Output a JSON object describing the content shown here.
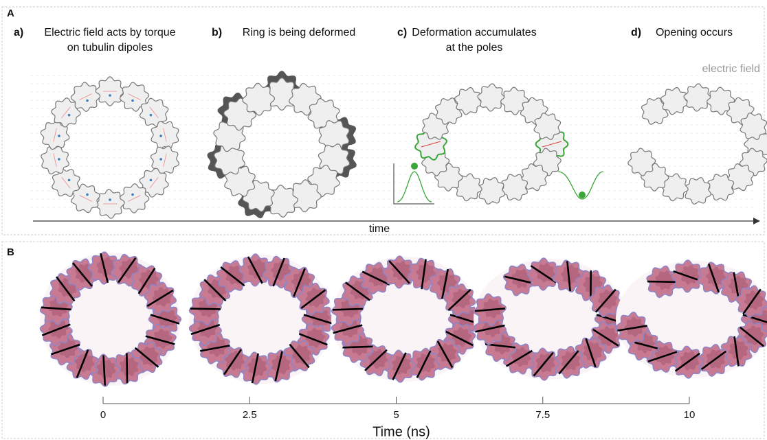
{
  "panel_a": {
    "label": "A",
    "panels": [
      {
        "letter": "a)",
        "title": [
          "Electric field acts by torque",
          "on tubulin dipoles"
        ]
      },
      {
        "letter": "b)",
        "title": [
          "Ring is being deformed"
        ]
      },
      {
        "letter": "c)",
        "title": [
          "Deformation accumulates",
          "at the poles"
        ]
      },
      {
        "letter": "d)",
        "title": [
          "Opening occurs"
        ]
      }
    ],
    "field_label": "electric field",
    "arrow_label": "time"
  },
  "panel_b": {
    "label": "B",
    "axis_label": "Time (ns)",
    "xlim": [
      0,
      10
    ],
    "xticks": [
      0,
      2.5,
      5,
      7.5,
      10
    ]
  }
}
